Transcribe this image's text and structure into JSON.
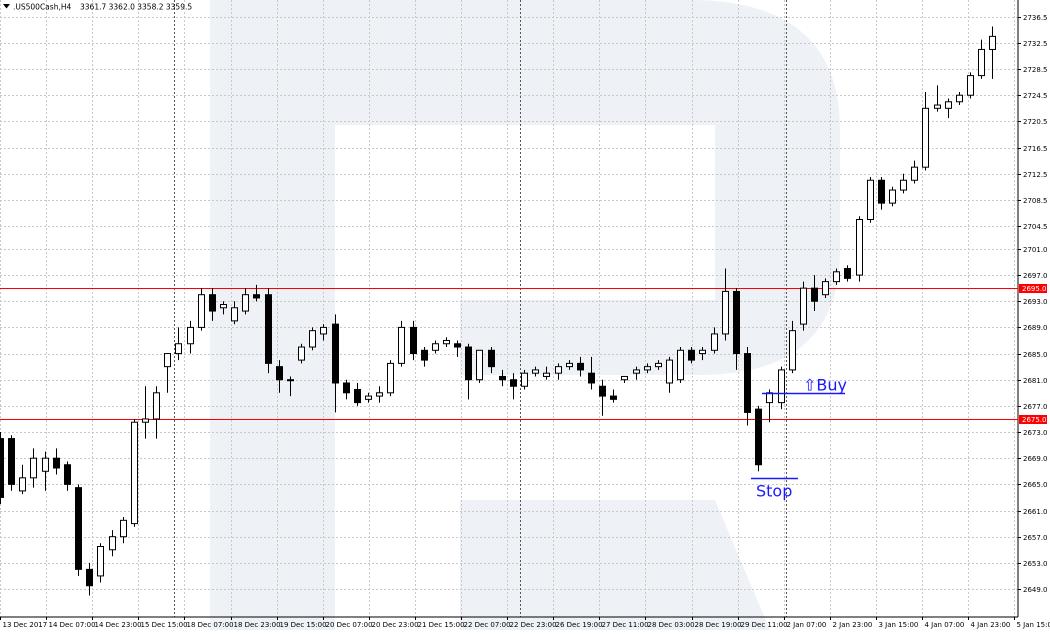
{
  "chart_data": {
    "type": "candlestick",
    "symbol_label": ".US500Cash,H4",
    "ohlc_readout": "3361.7 3362.0 3358.2 3359.5",
    "ylim": [
      2645,
      2737.5
    ],
    "y_ticks": [
      2736.5,
      2732.5,
      2728.5,
      2724.5,
      2720.5,
      2716.5,
      2712.5,
      2708.5,
      2704.5,
      2701.0,
      2697.0,
      2693.0,
      2689.0,
      2685.0,
      2681.0,
      2677.0,
      2673.0,
      2669.0,
      2665.0,
      2661.0,
      2657.0,
      2653.0,
      2649.0
    ],
    "x_ticks": [
      "13 Dec 2017",
      "14 Dec 07:00",
      "14 Dec 23:00",
      "15 Dec 15:00",
      "18 Dec 07:00",
      "18 Dec 23:00",
      "19 Dec 15:00",
      "20 Dec 07:00",
      "20 Dec 23:00",
      "21 Dec 15:00",
      "22 Dec 07:00",
      "22 Dec 23:00",
      "26 Dec 19:00",
      "27 Dec 11:00",
      "28 Dec 03:00",
      "28 Dec 19:00",
      "29 Dec 11:00",
      "2 Jan 07:00",
      "2 Jan 23:00",
      "3 Jan 15:00",
      "4 Jan 07:00",
      "4 Jan 23:00",
      "5 Jan 15:00"
    ],
    "price_levels": [
      {
        "value": 2695.0,
        "label": "2695.0",
        "color": "#ff0000"
      },
      {
        "value": 2675.0,
        "label": "2675.0",
        "color": "#ff0000"
      }
    ],
    "annotations": [
      {
        "text": "⇧Buy",
        "price": 2679.0,
        "color": "#1a1aff"
      },
      {
        "text": "Stop",
        "price": 2666.0,
        "color": "#1a1aff"
      }
    ],
    "candles": [
      {
        "o": 2672.0,
        "h": 2673.0,
        "l": 2662.0,
        "c": 2663.0
      },
      {
        "o": 2672.0,
        "h": 2672.5,
        "l": 2664.0,
        "c": 2665.0
      },
      {
        "o": 2664.0,
        "h": 2668.0,
        "l": 2663.5,
        "c": 2666.0
      },
      {
        "o": 2666.0,
        "h": 2670.5,
        "l": 2664.5,
        "c": 2669.0
      },
      {
        "o": 2667.0,
        "h": 2670.0,
        "l": 2664.0,
        "c": 2669.0
      },
      {
        "o": 2669.0,
        "h": 2670.5,
        "l": 2666.5,
        "c": 2667.5
      },
      {
        "o": 2668.0,
        "h": 2668.5,
        "l": 2664.0,
        "c": 2665.0
      },
      {
        "o": 2664.5,
        "h": 2665.0,
        "l": 2651.0,
        "c": 2652.0
      },
      {
        "o": 2652.0,
        "h": 2653.0,
        "l": 2648.0,
        "c": 2649.5
      },
      {
        "o": 2651.0,
        "h": 2656.0,
        "l": 2650.0,
        "c": 2655.5
      },
      {
        "o": 2655.0,
        "h": 2658.0,
        "l": 2654.0,
        "c": 2657.0
      },
      {
        "o": 2657.0,
        "h": 2660.0,
        "l": 2656.0,
        "c": 2659.5
      },
      {
        "o": 2659.0,
        "h": 2675.0,
        "l": 2658.5,
        "c": 2674.5
      },
      {
        "o": 2674.5,
        "h": 2680.0,
        "l": 2672.0,
        "c": 2675.0
      },
      {
        "o": 2675.0,
        "h": 2680.0,
        "l": 2672.0,
        "c": 2679.0
      },
      {
        "o": 2683.0,
        "h": 2685.0,
        "l": 2679.0,
        "c": 2685.0
      },
      {
        "o": 2685.0,
        "h": 2689.0,
        "l": 2684.0,
        "c": 2686.5
      },
      {
        "o": 2686.5,
        "h": 2690.0,
        "l": 2685.0,
        "c": 2689.0
      },
      {
        "o": 2689.0,
        "h": 2695.0,
        "l": 2688.5,
        "c": 2694.0
      },
      {
        "o": 2694.0,
        "h": 2695.0,
        "l": 2690.0,
        "c": 2691.5
      },
      {
        "o": 2692.0,
        "h": 2693.0,
        "l": 2691.0,
        "c": 2692.5
      },
      {
        "o": 2690.0,
        "h": 2693.0,
        "l": 2689.5,
        "c": 2692.0
      },
      {
        "o": 2691.5,
        "h": 2695.0,
        "l": 2691.0,
        "c": 2694.0
      },
      {
        "o": 2694.0,
        "h": 2695.5,
        "l": 2693.0,
        "c": 2693.5
      },
      {
        "o": 2694.0,
        "h": 2695.0,
        "l": 2682.0,
        "c": 2683.5
      },
      {
        "o": 2683.0,
        "h": 2684.0,
        "l": 2679.0,
        "c": 2681.0
      },
      {
        "o": 2681.0,
        "h": 2681.5,
        "l": 2678.5,
        "c": 2681.0
      },
      {
        "o": 2684.0,
        "h": 2686.5,
        "l": 2683.5,
        "c": 2686.0
      },
      {
        "o": 2686.0,
        "h": 2689.0,
        "l": 2685.5,
        "c": 2688.5
      },
      {
        "o": 2688.0,
        "h": 2689.5,
        "l": 2687.0,
        "c": 2689.0
      },
      {
        "o": 2689.5,
        "h": 2691.0,
        "l": 2676.0,
        "c": 2680.5
      },
      {
        "o": 2680.5,
        "h": 2681.0,
        "l": 2678.0,
        "c": 2679.0
      },
      {
        "o": 2679.5,
        "h": 2680.5,
        "l": 2677.0,
        "c": 2677.5
      },
      {
        "o": 2678.0,
        "h": 2679.0,
        "l": 2677.5,
        "c": 2678.5
      },
      {
        "o": 2678.5,
        "h": 2680.0,
        "l": 2677.5,
        "c": 2679.0
      },
      {
        "o": 2679.0,
        "h": 2684.0,
        "l": 2678.5,
        "c": 2683.5
      },
      {
        "o": 2683.5,
        "h": 2690.0,
        "l": 2683.0,
        "c": 2689.0
      },
      {
        "o": 2689.0,
        "h": 2690.0,
        "l": 2684.0,
        "c": 2685.0
      },
      {
        "o": 2685.5,
        "h": 2686.0,
        "l": 2683.0,
        "c": 2684.0
      },
      {
        "o": 2685.5,
        "h": 2687.0,
        "l": 2685.0,
        "c": 2686.5
      },
      {
        "o": 2686.5,
        "h": 2687.5,
        "l": 2686.0,
        "c": 2687.0
      },
      {
        "o": 2686.5,
        "h": 2687.0,
        "l": 2684.5,
        "c": 2686.0
      },
      {
        "o": 2686.0,
        "h": 2686.5,
        "l": 2678.0,
        "c": 2681.0
      },
      {
        "o": 2681.0,
        "h": 2685.5,
        "l": 2680.5,
        "c": 2685.5
      },
      {
        "o": 2685.5,
        "h": 2686.0,
        "l": 2682.0,
        "c": 2683.0
      },
      {
        "o": 2681.5,
        "h": 2682.5,
        "l": 2680.0,
        "c": 2681.0
      },
      {
        "o": 2681.0,
        "h": 2682.0,
        "l": 2678.0,
        "c": 2680.0
      },
      {
        "o": 2680.0,
        "h": 2682.5,
        "l": 2679.5,
        "c": 2682.0
      },
      {
        "o": 2682.0,
        "h": 2683.0,
        "l": 2681.5,
        "c": 2682.5
      },
      {
        "o": 2681.5,
        "h": 2683.0,
        "l": 2681.0,
        "c": 2682.0
      },
      {
        "o": 2682.0,
        "h": 2683.5,
        "l": 2681.0,
        "c": 2683.0
      },
      {
        "o": 2683.0,
        "h": 2684.0,
        "l": 2682.5,
        "c": 2683.5
      },
      {
        "o": 2683.5,
        "h": 2684.5,
        "l": 2681.5,
        "c": 2682.5
      },
      {
        "o": 2682.0,
        "h": 2684.5,
        "l": 2679.5,
        "c": 2680.5
      },
      {
        "o": 2680.0,
        "h": 2681.0,
        "l": 2675.5,
        "c": 2678.5
      },
      {
        "o": 2678.5,
        "h": 2679.5,
        "l": 2677.5,
        "c": 2678.0
      },
      {
        "o": 2681.0,
        "h": 2681.5,
        "l": 2680.5,
        "c": 2681.5
      },
      {
        "o": 2682.0,
        "h": 2683.0,
        "l": 2681.0,
        "c": 2682.5
      },
      {
        "o": 2682.5,
        "h": 2683.5,
        "l": 2682.0,
        "c": 2683.0
      },
      {
        "o": 2683.0,
        "h": 2684.0,
        "l": 2682.5,
        "c": 2683.5
      },
      {
        "o": 2680.5,
        "h": 2684.5,
        "l": 2679.0,
        "c": 2684.0
      },
      {
        "o": 2681.0,
        "h": 2686.0,
        "l": 2680.5,
        "c": 2685.5
      },
      {
        "o": 2685.5,
        "h": 2686.0,
        "l": 2683.5,
        "c": 2684.0
      },
      {
        "o": 2685.0,
        "h": 2686.0,
        "l": 2684.0,
        "c": 2685.5
      },
      {
        "o": 2685.5,
        "h": 2689.0,
        "l": 2685.0,
        "c": 2688.0
      },
      {
        "o": 2688.0,
        "h": 2698.0,
        "l": 2687.0,
        "c": 2694.5
      },
      {
        "o": 2694.5,
        "h": 2695.0,
        "l": 2682.5,
        "c": 2685.0
      },
      {
        "o": 2685.0,
        "h": 2686.0,
        "l": 2674.0,
        "c": 2676.0
      },
      {
        "o": 2676.5,
        "h": 2677.0,
        "l": 2667.0,
        "c": 2668.0
      },
      {
        "o": 2677.5,
        "h": 2679.5,
        "l": 2674.5,
        "c": 2679.0
      },
      {
        "o": 2677.5,
        "h": 2683.0,
        "l": 2676.5,
        "c": 2682.5
      },
      {
        "o": 2682.5,
        "h": 2690.0,
        "l": 2682.0,
        "c": 2688.5
      },
      {
        "o": 2689.5,
        "h": 2696.0,
        "l": 2688.5,
        "c": 2695.0
      },
      {
        "o": 2695.0,
        "h": 2697.0,
        "l": 2691.5,
        "c": 2693.0
      },
      {
        "o": 2694.0,
        "h": 2696.5,
        "l": 2693.5,
        "c": 2696.0
      },
      {
        "o": 2696.0,
        "h": 2698.0,
        "l": 2695.5,
        "c": 2697.5
      },
      {
        "o": 2698.0,
        "h": 2698.5,
        "l": 2696.0,
        "c": 2696.5
      },
      {
        "o": 2697.0,
        "h": 2706.0,
        "l": 2696.0,
        "c": 2705.5
      },
      {
        "o": 2705.5,
        "h": 2712.0,
        "l": 2705.0,
        "c": 2711.5
      },
      {
        "o": 2711.5,
        "h": 2712.0,
        "l": 2707.0,
        "c": 2708.0
      },
      {
        "o": 2708.0,
        "h": 2710.5,
        "l": 2707.5,
        "c": 2710.0
      },
      {
        "o": 2710.0,
        "h": 2712.5,
        "l": 2709.5,
        "c": 2711.5
      },
      {
        "o": 2711.5,
        "h": 2714.5,
        "l": 2711.0,
        "c": 2713.5
      },
      {
        "o": 2713.5,
        "h": 2725.0,
        "l": 2713.0,
        "c": 2722.5
      },
      {
        "o": 2722.5,
        "h": 2726.0,
        "l": 2722.0,
        "c": 2723.0
      },
      {
        "o": 2722.5,
        "h": 2724.0,
        "l": 2721.0,
        "c": 2723.5
      },
      {
        "o": 2723.5,
        "h": 2725.0,
        "l": 2723.0,
        "c": 2724.5
      },
      {
        "o": 2724.5,
        "h": 2728.0,
        "l": 2724.0,
        "c": 2727.5
      },
      {
        "o": 2727.5,
        "h": 2733.0,
        "l": 2727.0,
        "c": 2731.5
      },
      {
        "o": 2731.5,
        "h": 2735.0,
        "l": 2727.0,
        "c": 2733.5
      }
    ]
  }
}
